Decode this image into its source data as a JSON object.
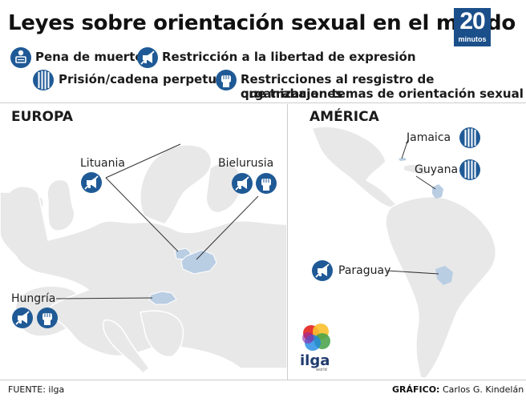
{
  "title": "Leyes sobre orientación sexual en el mundo",
  "logo": {
    "number": "20",
    "word": "minutos"
  },
  "legend": {
    "death": "Pena de muerte",
    "expression": "Restricción a la libertad de expresión",
    "prison": "Prisión/cadena perpetua",
    "orgs_line1": "Restricciones al resgistro de organizaciones",
    "orgs_line2": "que trabajan temas de orientación sexual"
  },
  "regions": {
    "europe": "EUROPA",
    "america": "AMÉRICA"
  },
  "countries": {
    "lituania": "Lituania",
    "bielurusia": "Bielurusia",
    "hungria": "Hungría",
    "jamaica": "Jamaica",
    "guyana": "Guyana",
    "paraguay": "Paraguay"
  },
  "ilga": {
    "name": "ilga",
    "sub": "world"
  },
  "footer": {
    "source": "FUENTE: ilga",
    "graphic_label": "GRÁFICO:",
    "graphic_author": "Carlos G. Kindelán"
  },
  "colors": {
    "icon_blue": "#1f5a96",
    "map_gray": "#e8e8e8",
    "highlight": "#b9cde3",
    "logo_blue": "#1b4f8a"
  }
}
